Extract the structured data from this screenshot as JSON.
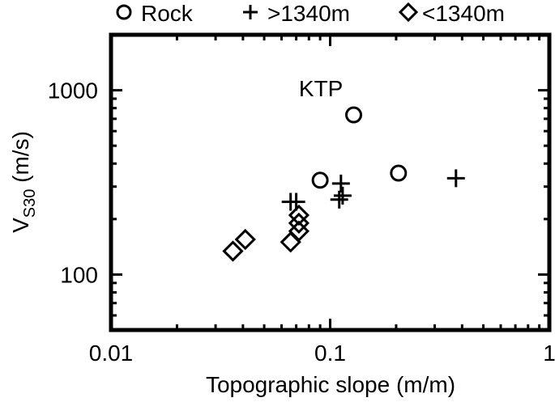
{
  "chart_data": {
    "type": "scatter",
    "title": "",
    "xlabel": "Topographic slope (m/m)",
    "ylabel": {
      "main": "V",
      "sub": "S30",
      "unit": " (m/s)"
    },
    "xscale": "log",
    "yscale": "log",
    "xlim": [
      0.01,
      1
    ],
    "ylim": [
      50,
      2000
    ],
    "xticks": [
      {
        "value": 0.01,
        "label": "0.01"
      },
      {
        "value": 0.1,
        "label": "0.1"
      },
      {
        "value": 1,
        "label": "1"
      }
    ],
    "yticks": [
      {
        "value": 100,
        "label": "100"
      },
      {
        "value": 1000,
        "label": "1000"
      }
    ],
    "grid": false,
    "legend_position": "top",
    "series": [
      {
        "name": "Rock",
        "marker": "circle",
        "points": [
          {
            "x": 0.128,
            "y": 735
          },
          {
            "x": 0.09,
            "y": 325
          },
          {
            "x": 0.205,
            "y": 355
          }
        ]
      },
      {
        "name": ">1340m",
        "marker": "plus",
        "points": [
          {
            "x": 0.066,
            "y": 248
          },
          {
            "x": 0.07,
            "y": 248
          },
          {
            "x": 0.112,
            "y": 312
          },
          {
            "x": 0.114,
            "y": 268
          },
          {
            "x": 0.11,
            "y": 255
          },
          {
            "x": 0.375,
            "y": 333
          }
        ]
      },
      {
        "name": "<1340m",
        "marker": "diamond",
        "points": [
          {
            "x": 0.036,
            "y": 134
          },
          {
            "x": 0.041,
            "y": 155
          },
          {
            "x": 0.066,
            "y": 150
          },
          {
            "x": 0.072,
            "y": 172
          },
          {
            "x": 0.072,
            "y": 190
          },
          {
            "x": 0.072,
            "y": 210
          }
        ]
      }
    ],
    "annotations": [
      {
        "text": "KTP",
        "x": 0.072,
        "y": 930
      }
    ]
  }
}
